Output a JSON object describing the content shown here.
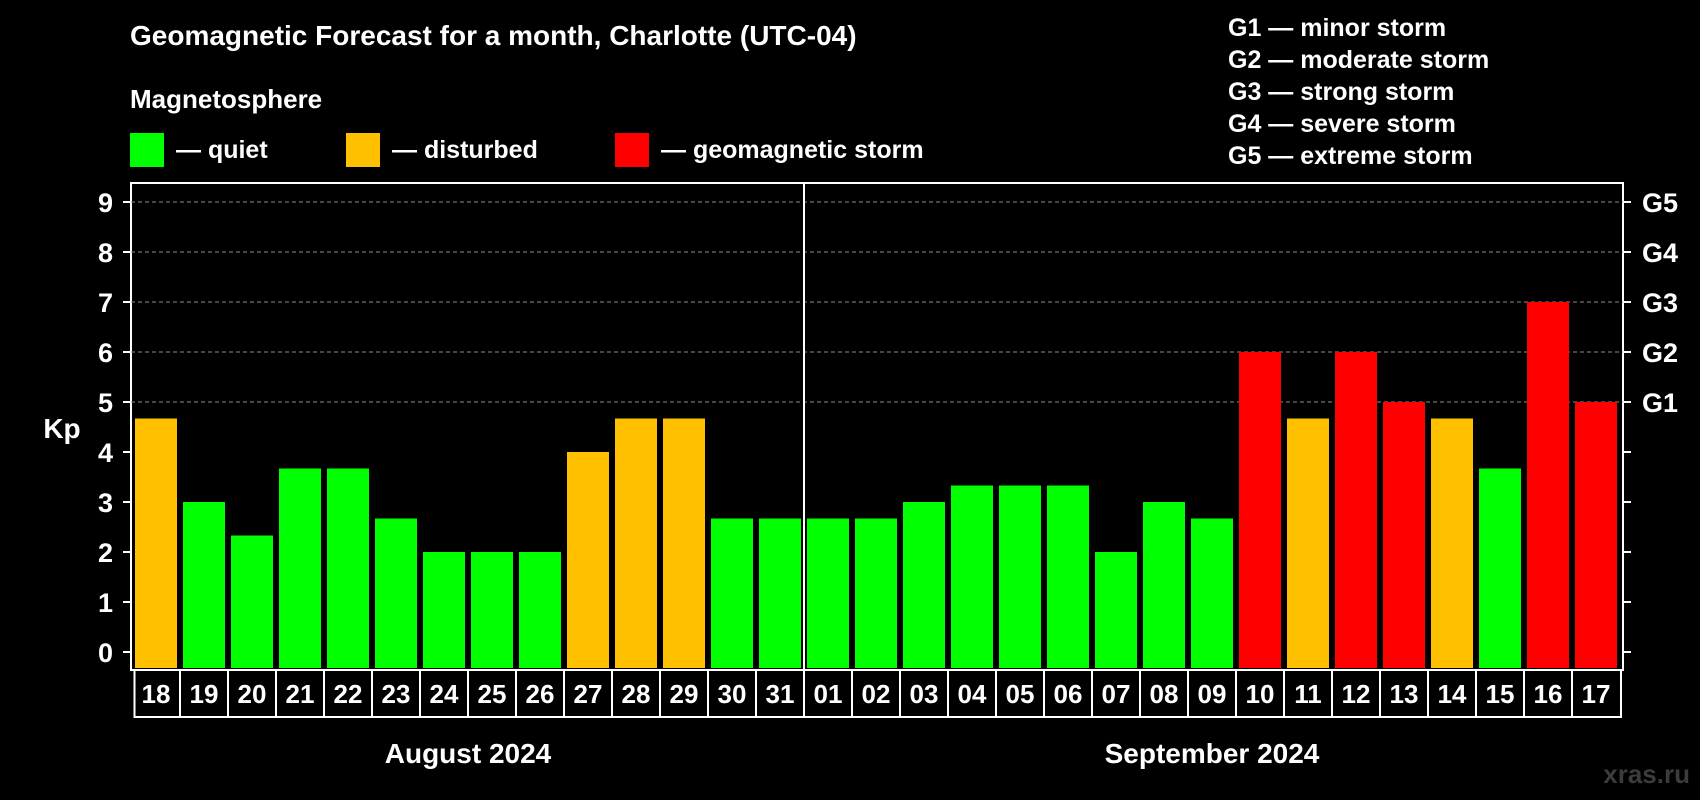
{
  "title": "Geomagnetic Forecast for a month, Charlotte (UTC-04)",
  "magnetosphere": {
    "title": "Magnetosphere",
    "legend": [
      {
        "label": "— quiet",
        "color": "#00ff00"
      },
      {
        "label": "— disturbed",
        "color": "#ffc000"
      },
      {
        "label": "— geomagnetic storm",
        "color": "#ff0000"
      }
    ]
  },
  "storm_scale": [
    "G1 — minor storm",
    "G2 — moderate storm",
    "G3 — strong storm",
    "G4 — severe storm",
    "G5 — extreme storm"
  ],
  "watermark": "xras.ru",
  "colors": {
    "quiet": "#00ff00",
    "disturbed": "#ffc000",
    "storm": "#ff0000",
    "background": "#000000",
    "axis": "#ffffff",
    "grid": "#8c8c8c"
  },
  "chart_data": {
    "type": "bar",
    "ylabel": "Kp",
    "ylim": [
      0,
      9
    ],
    "yticks": [
      "0",
      "1",
      "2",
      "3",
      "4",
      "5",
      "6",
      "7",
      "8",
      "9"
    ],
    "right_ticks": [
      {
        "kp": 5,
        "label": "G1"
      },
      {
        "kp": 6,
        "label": "G2"
      },
      {
        "kp": 7,
        "label": "G3"
      },
      {
        "kp": 8,
        "label": "G4"
      },
      {
        "kp": 9,
        "label": "G5"
      }
    ],
    "categories": [
      "18",
      "19",
      "20",
      "21",
      "22",
      "23",
      "24",
      "25",
      "26",
      "27",
      "28",
      "29",
      "30",
      "31",
      "01",
      "02",
      "03",
      "04",
      "05",
      "06",
      "07",
      "08",
      "09",
      "10",
      "11",
      "12",
      "13",
      "14",
      "15",
      "16",
      "17"
    ],
    "values": [
      4.67,
      3,
      2.33,
      3.67,
      3.67,
      2.67,
      2,
      2,
      2,
      4,
      4.67,
      4.67,
      2.67,
      2.67,
      2.67,
      2.67,
      3,
      3.33,
      3.33,
      3.33,
      2,
      3,
      2.67,
      6,
      4.67,
      6,
      5,
      4.67,
      3.67,
      7,
      5
    ],
    "status": [
      "disturbed",
      "quiet",
      "quiet",
      "quiet",
      "quiet",
      "quiet",
      "quiet",
      "quiet",
      "quiet",
      "disturbed",
      "disturbed",
      "disturbed",
      "quiet",
      "quiet",
      "quiet",
      "quiet",
      "quiet",
      "quiet",
      "quiet",
      "quiet",
      "quiet",
      "quiet",
      "quiet",
      "storm",
      "disturbed",
      "storm",
      "storm",
      "disturbed",
      "quiet",
      "storm",
      "storm"
    ],
    "months": [
      {
        "label": "August 2024",
        "count": 14
      },
      {
        "label": "September 2024",
        "count": 17
      }
    ],
    "grid": true
  }
}
